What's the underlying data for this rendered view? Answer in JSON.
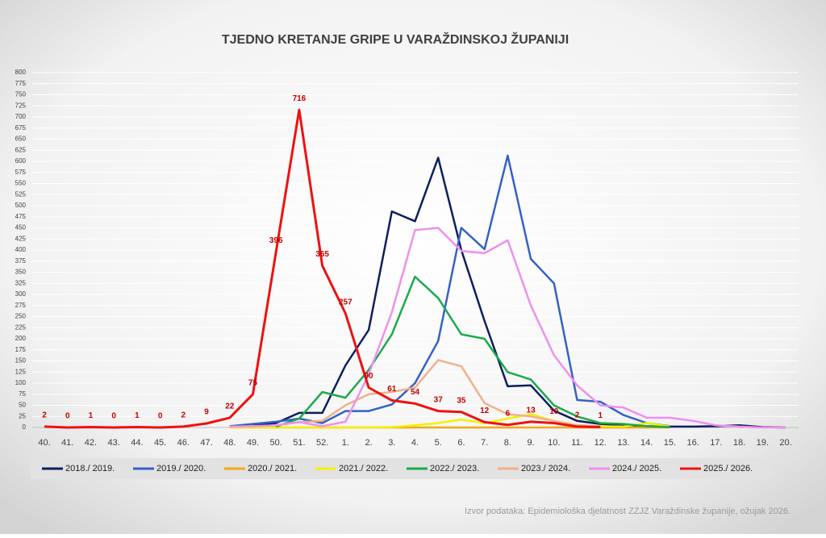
{
  "chart_data": {
    "type": "line",
    "title": "TJEDNO KRETANJE GRIPE U VARAŽDINSKOJ ŽUPANIJI",
    "source": "Izvor podataka: Epidemiološka djelatnost ZZJZ Varaždinske županije, ožujak 2026.",
    "categories": [
      "40.",
      "41.",
      "42.",
      "43.",
      "44.",
      "45.",
      "46.",
      "47.",
      "48.",
      "49.",
      "50.",
      "51.",
      "52.",
      "1.",
      "2.",
      "3.",
      "4.",
      "5.",
      "6.",
      "7.",
      "8.",
      "9.",
      "10.",
      "11.",
      "12.",
      "13.",
      "14.",
      "15.",
      "16.",
      "17.",
      "18.",
      "19.",
      "20."
    ],
    "ylim": [
      0,
      800
    ],
    "yticks": [
      0,
      25,
      50,
      75,
      100,
      125,
      150,
      175,
      200,
      225,
      250,
      275,
      300,
      325,
      350,
      375,
      400,
      425,
      450,
      475,
      500,
      525,
      550,
      575,
      600,
      625,
      650,
      675,
      700,
      725,
      750,
      775,
      800
    ],
    "grid": true,
    "series": [
      {
        "name": "2018./ 2019.",
        "color": "#0d1f5c",
        "values": [
          null,
          null,
          null,
          null,
          null,
          null,
          null,
          null,
          null,
          5,
          10,
          33,
          33,
          140,
          220,
          487,
          465,
          608,
          400,
          240,
          93,
          95,
          38,
          15,
          8,
          5,
          3,
          2,
          2,
          3,
          5,
          1,
          0
        ]
      },
      {
        "name": "2019./ 2020.",
        "color": "#3462c4",
        "values": [
          null,
          null,
          null,
          null,
          null,
          null,
          null,
          null,
          3,
          8,
          13,
          20,
          10,
          37,
          37,
          52,
          100,
          195,
          450,
          402,
          613,
          380,
          325,
          62,
          58,
          28,
          10,
          3,
          null,
          null,
          null,
          null,
          null
        ]
      },
      {
        "name": "2020./ 2021.",
        "color": "#f0a818",
        "values": [
          null,
          null,
          null,
          null,
          null,
          null,
          null,
          null,
          0,
          0,
          0,
          0,
          0,
          0,
          0,
          0,
          0,
          0,
          0,
          0,
          0,
          0,
          0,
          0,
          0,
          0,
          0,
          0,
          null,
          null,
          null,
          null,
          null
        ]
      },
      {
        "name": "2021./ 2022.",
        "color": "#f5f000",
        "values": [
          null,
          null,
          null,
          null,
          null,
          null,
          null,
          null,
          0,
          0,
          0,
          0,
          0,
          0,
          0,
          1,
          5,
          10,
          18,
          10,
          20,
          30,
          15,
          5,
          3,
          2,
          10,
          2,
          null,
          null,
          null,
          null,
          null
        ]
      },
      {
        "name": "2022./ 2023.",
        "color": "#1aaa4a",
        "values": [
          null,
          null,
          null,
          null,
          null,
          null,
          null,
          null,
          null,
          null,
          2,
          20,
          80,
          67,
          130,
          210,
          340,
          292,
          210,
          200,
          125,
          108,
          50,
          25,
          10,
          8,
          3,
          1,
          null,
          null,
          null,
          null,
          null
        ]
      },
      {
        "name": "2023./ 2024.",
        "color": "#f0b08a",
        "values": [
          null,
          null,
          null,
          null,
          null,
          null,
          null,
          null,
          null,
          null,
          5,
          12,
          15,
          50,
          75,
          80,
          90,
          152,
          138,
          55,
          30,
          25,
          15,
          5,
          3,
          null,
          null,
          null,
          null,
          null,
          null,
          null,
          null
        ]
      },
      {
        "name": "2024./ 2025.",
        "color": "#ee90ee",
        "values": [
          null,
          null,
          null,
          null,
          null,
          null,
          null,
          null,
          2,
          3,
          5,
          12,
          3,
          13,
          120,
          260,
          445,
          450,
          398,
          393,
          422,
          275,
          163,
          95,
          50,
          45,
          22,
          22,
          15,
          5,
          2,
          0,
          0
        ]
      },
      {
        "name": "2025./ 2026.",
        "color": "#ee1111",
        "show_labels": true,
        "values": [
          2,
          0,
          1,
          0,
          1,
          0,
          2,
          9,
          22,
          75,
          396,
          716,
          365,
          257,
          90,
          61,
          54,
          37,
          35,
          12,
          6,
          13,
          10,
          2,
          1,
          null,
          null,
          null,
          null,
          null,
          null,
          null,
          null
        ]
      }
    ]
  }
}
